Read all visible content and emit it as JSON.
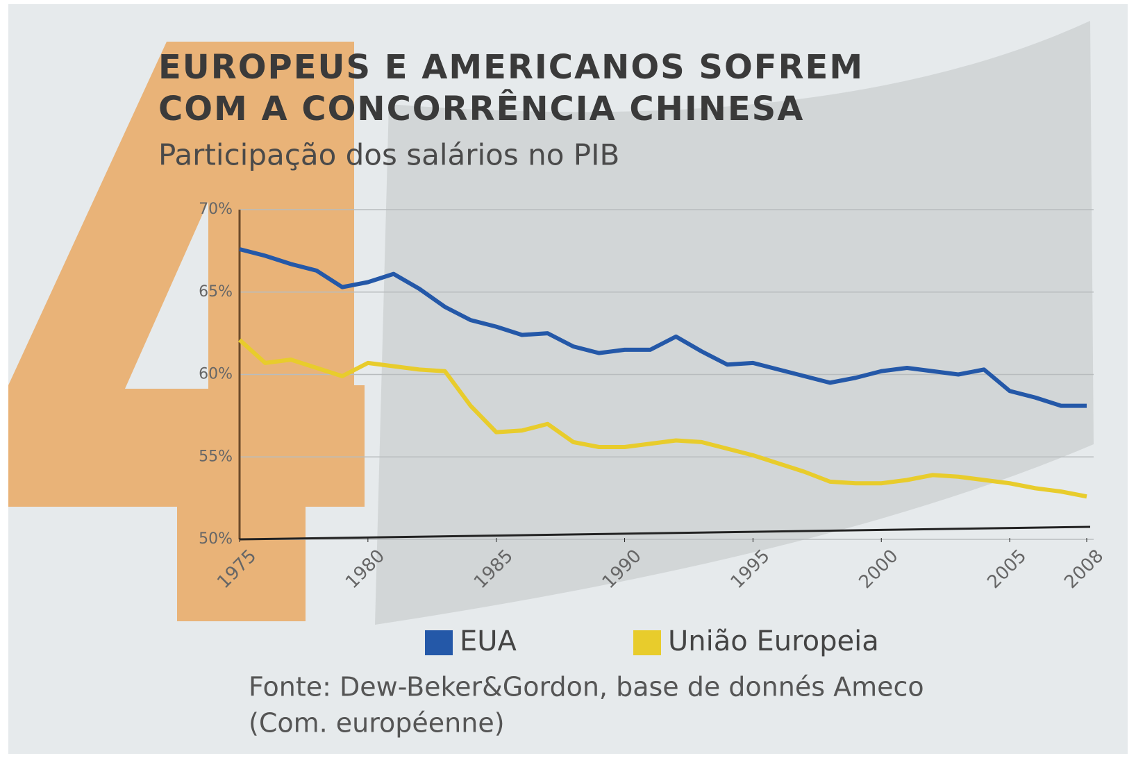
{
  "chart_data": {
    "type": "line",
    "title": [
      "EUROPEUS E AMERICANOS SOFREM",
      "COM A CONCORRÊNCIA CHINESA"
    ],
    "subtitle": "Participação dos salários no PIB",
    "source": [
      "Fonte: Dew-Beker&Gordon, base de donnés Ameco",
      "(Com. européenne)"
    ],
    "x": [
      1975,
      1976,
      1977,
      1978,
      1979,
      1980,
      1981,
      1982,
      1983,
      1984,
      1985,
      1986,
      1987,
      1988,
      1989,
      1990,
      1991,
      1992,
      1993,
      1994,
      1995,
      1996,
      1997,
      1998,
      1999,
      2000,
      2001,
      2002,
      2003,
      2004,
      2005,
      2006,
      2007,
      2008
    ],
    "series": [
      {
        "name": "EUA",
        "color": "#2458a8",
        "values": [
          67.6,
          67.2,
          66.7,
          66.3,
          65.3,
          65.6,
          66.1,
          65.2,
          64.1,
          63.3,
          62.9,
          62.4,
          62.5,
          61.7,
          61.3,
          61.5,
          61.5,
          62.3,
          61.4,
          60.6,
          60.7,
          60.3,
          59.9,
          59.5,
          59.8,
          60.2,
          60.4,
          60.2,
          60.0,
          60.3,
          59.0,
          58.6,
          58.1,
          58.1
        ]
      },
      {
        "name": "União Europeia",
        "color": "#e8cc2c",
        "values": [
          62.1,
          60.7,
          60.9,
          60.4,
          59.9,
          60.7,
          60.5,
          60.3,
          60.2,
          58.1,
          56.5,
          56.6,
          57.0,
          55.9,
          55.6,
          55.6,
          55.8,
          56.0,
          55.9,
          55.5,
          55.1,
          54.6,
          54.1,
          53.5,
          53.4,
          53.4,
          53.6,
          53.9,
          53.8,
          53.6,
          53.4,
          53.1,
          52.9,
          52.6
        ]
      }
    ],
    "xlim": [
      1975,
      2008
    ],
    "xticks": [
      1975,
      1980,
      1985,
      1990,
      1995,
      2000,
      2005,
      2008
    ],
    "ylim": [
      50,
      70
    ],
    "yticks": [
      {
        "value": 50,
        "label": "50%"
      },
      {
        "value": 55,
        "label": "55%"
      },
      {
        "value": 60,
        "label": "60%"
      },
      {
        "value": 65,
        "label": "65%"
      },
      {
        "value": 70,
        "label": "70%"
      }
    ],
    "grid": true
  }
}
